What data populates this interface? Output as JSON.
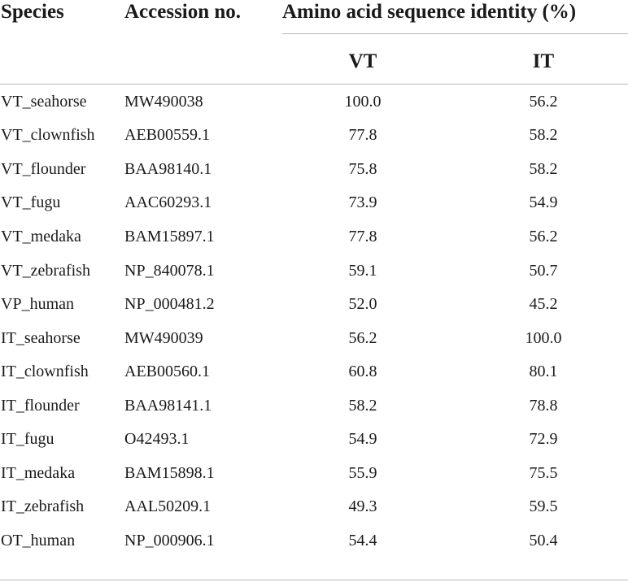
{
  "table": {
    "headers": {
      "species": "Species",
      "accession": "Accession no.",
      "identity": "Amino acid sequence identity (%)",
      "vt": "VT",
      "it": "IT"
    },
    "rows": [
      {
        "species": "VT_seahorse",
        "accession": "MW490038",
        "vt": "100.0",
        "it": "56.2"
      },
      {
        "species": "VT_clownfish",
        "accession": "AEB00559.1",
        "vt": "77.8",
        "it": "58.2"
      },
      {
        "species": "VT_flounder",
        "accession": "BAA98140.1",
        "vt": "75.8",
        "it": "58.2"
      },
      {
        "species": "VT_fugu",
        "accession": "AAC60293.1",
        "vt": "73.9",
        "it": "54.9"
      },
      {
        "species": "VT_medaka",
        "accession": "BAM15897.1",
        "vt": "77.8",
        "it": "56.2"
      },
      {
        "species": "VT_zebrafish",
        "accession": "NP_840078.1",
        "vt": "59.1",
        "it": "50.7"
      },
      {
        "species": "VP_human",
        "accession": "NP_000481.2",
        "vt": "52.0",
        "it": "45.2"
      },
      {
        "species": "IT_seahorse",
        "accession": "MW490039",
        "vt": "56.2",
        "it": "100.0"
      },
      {
        "species": "IT_clownfish",
        "accession": "AEB00560.1",
        "vt": "60.8",
        "it": "80.1"
      },
      {
        "species": "IT_flounder",
        "accession": "BAA98141.1",
        "vt": "58.2",
        "it": "78.8"
      },
      {
        "species": "IT_fugu",
        "accession": "O42493.1",
        "vt": "54.9",
        "it": "72.9"
      },
      {
        "species": "IT_medaka",
        "accession": "BAM15898.1",
        "vt": "55.9",
        "it": "75.5"
      },
      {
        "species": "IT_zebrafish",
        "accession": "AAL50209.1",
        "vt": "49.3",
        "it": "59.5"
      },
      {
        "species": "OT_human",
        "accession": "NP_000906.1",
        "vt": "54.4",
        "it": "50.4"
      }
    ]
  }
}
